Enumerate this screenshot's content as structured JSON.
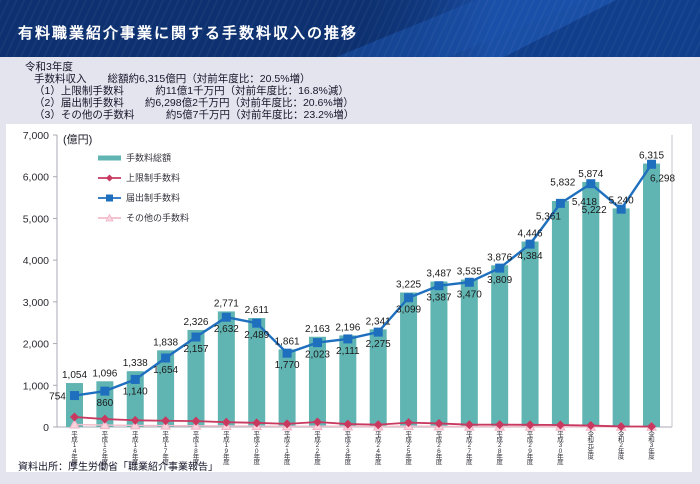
{
  "header": {
    "title": "有料職業紹介事業に関する手数料収入の推移"
  },
  "summary": {
    "year_label": "令和3年度",
    "lines": [
      "手数料収入　　総額約6,315億円（対前年度比：20.5%増）",
      "（1）上限制手数料　　　約11億1千万円（対前年度比：16.8%減）",
      "（2）届出制手数料　　約6,298億2千万円（対前年度比：20.6%増）",
      "（3）その他の手数料　　　約5億7千万円（対前年度比：23.2%増）"
    ]
  },
  "source": {
    "text": "資料出所：厚生労働省「職業紹介事業報告」"
  },
  "colors": {
    "page_bg": "#e4e4ee",
    "header_navy": "#0d3170",
    "header_blue": "#1a4fa6",
    "panel_bg": "#ffffff",
    "bar_teal": "#60b4b2",
    "line_blue": "#1f6fbf",
    "line_red": "#c8385f",
    "line_pink": "#f3bcc9",
    "axis_grey": "#a9a9b4",
    "label_dark": "#1a1a1a"
  },
  "chart_data": {
    "type": "bar",
    "title": "",
    "unit_label": "(億円)",
    "ylabel": "億円",
    "ylim": [
      0,
      7000
    ],
    "yticks": [
      0,
      1000,
      2000,
      3000,
      4000,
      5000,
      6000,
      7000
    ],
    "grid": false,
    "legend_position": "top-left-inside",
    "categories": [
      "平成14年度",
      "平成15年度",
      "平成16年度",
      "平成17年度",
      "平成18年度",
      "平成19年度",
      "平成20年度",
      "平成21年度",
      "平成22年度",
      "平成23年度",
      "平成24年度",
      "平成25年度",
      "平成26年度",
      "平成27年度",
      "平成28年度",
      "平成29年度",
      "平成30年度",
      "令和元年度",
      "令和2年度",
      "令和3年度"
    ],
    "series": [
      {
        "name": "手数料総額",
        "type": "bar",
        "color": "#60b4b2",
        "labeled": true,
        "values": [
          1054,
          1096,
          1338,
          1838,
          2326,
          2771,
          2611,
          1861,
          2163,
          2196,
          2341,
          3225,
          3487,
          3535,
          3876,
          4446,
          5418,
          5874,
          5240,
          6315
        ]
      },
      {
        "name": "上限制手数料",
        "type": "line",
        "marker": "diamond",
        "color": "#c8385f",
        "labeled": false,
        "values_estimated": true,
        "values": [
          240,
          190,
          160,
          150,
          140,
          115,
          100,
          75,
          120,
          70,
          55,
          105,
          85,
          55,
          57,
          52,
          48,
          35,
          13,
          11
        ]
      },
      {
        "name": "届出制手数料",
        "type": "line",
        "marker": "square",
        "color": "#1f6fbf",
        "labeled": true,
        "values": [
          754,
          860,
          1140,
          1654,
          2157,
          2632,
          2489,
          1770,
          2023,
          2111,
          2275,
          3099,
          3387,
          3470,
          3809,
          4384,
          5361,
          5832,
          5222,
          6298
        ]
      },
      {
        "name": "その他の手数料",
        "type": "line",
        "marker": "triangle",
        "color": "#f3bcc9",
        "labeled": false,
        "values_estimated": true,
        "values": [
          60,
          46,
          38,
          34,
          29,
          24,
          22,
          16,
          20,
          15,
          11,
          21,
          15,
          10,
          10,
          10,
          9,
          7,
          5,
          6
        ]
      }
    ],
    "label_offsets": {
      "total": {
        "16": [
          24,
          9
        ]
      },
      "todokede": {
        "0": [
          -17,
          4
        ],
        "16": [
          -12,
          16
        ],
        "17": [
          -28,
          2
        ],
        "18": [
          -27,
          4
        ],
        "19": [
          11,
          17
        ]
      }
    }
  }
}
